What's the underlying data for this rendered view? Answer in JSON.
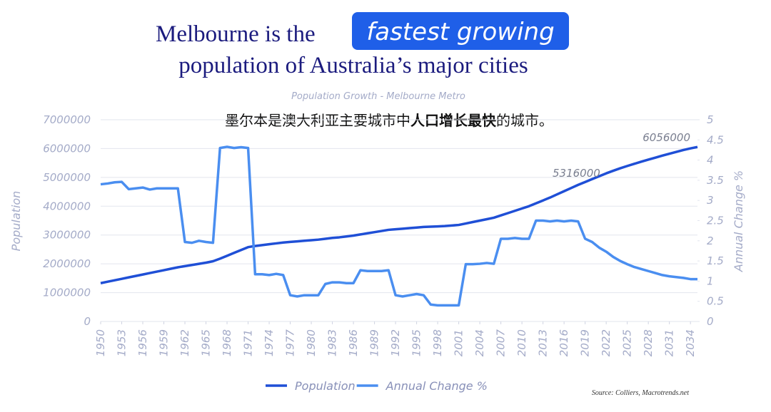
{
  "headline": {
    "line1": "Melbourne is the",
    "highlight": "fastest growing",
    "line2": "population of Australia’s major cities"
  },
  "subtitle_cn": {
    "before": "墨尔本是澳大利亚主要城市中",
    "bold": "人口增长最快",
    "after": "的城市。"
  },
  "source": "Source: Colliers, Macrotrends.net",
  "chart_data": {
    "type": "line",
    "title": "Population Growth - Melbourne Metro",
    "y_label": "Population",
    "y2_label": "Annual Change %",
    "x": [
      1950,
      1951,
      1952,
      1953,
      1954,
      1955,
      1956,
      1957,
      1958,
      1959,
      1960,
      1961,
      1962,
      1963,
      1964,
      1965,
      1966,
      1967,
      1968,
      1969,
      1970,
      1971,
      1972,
      1973,
      1974,
      1975,
      1976,
      1977,
      1978,
      1979,
      1980,
      1981,
      1982,
      1983,
      1984,
      1985,
      1986,
      1987,
      1988,
      1989,
      1990,
      1991,
      1992,
      1993,
      1994,
      1995,
      1996,
      1997,
      1998,
      1999,
      2000,
      2001,
      2002,
      2003,
      2004,
      2005,
      2006,
      2007,
      2008,
      2009,
      2010,
      2011,
      2012,
      2013,
      2014,
      2015,
      2016,
      2017,
      2018,
      2019,
      2020,
      2021,
      2022,
      2023,
      2024,
      2025,
      2026,
      2027,
      2028,
      2029,
      2030,
      2031,
      2032,
      2033,
      2034,
      2035
    ],
    "xlim": [
      1950,
      2035
    ],
    "xticks": [
      1950,
      1953,
      1956,
      1959,
      1962,
      1965,
      1968,
      1971,
      1974,
      1977,
      1980,
      1983,
      1986,
      1989,
      1992,
      1995,
      1998,
      2001,
      2004,
      2007,
      2010,
      2013,
      2016,
      2019,
      2022,
      2025,
      2028,
      2031,
      2034
    ],
    "ylim": [
      0,
      7000000
    ],
    "yticks": [
      0,
      1000000,
      2000000,
      3000000,
      4000000,
      5000000,
      6000000,
      7000000
    ],
    "y2lim": [
      0,
      5
    ],
    "y2ticks": [
      0,
      0.5,
      1,
      1.5,
      2,
      2.5,
      3,
      3.5,
      4,
      4.5,
      5
    ],
    "grid": true,
    "legend": "bottom",
    "series": [
      {
        "name": "Population",
        "color": "#1f4fd6",
        "values": [
          1330000,
          1380000,
          1430000,
          1480000,
          1530000,
          1580000,
          1630000,
          1680000,
          1730000,
          1780000,
          1830000,
          1880000,
          1920000,
          1960000,
          2000000,
          2040000,
          2090000,
          2180000,
          2280000,
          2380000,
          2480000,
          2580000,
          2620000,
          2650000,
          2680000,
          2710000,
          2740000,
          2760000,
          2780000,
          2800000,
          2820000,
          2840000,
          2870000,
          2900000,
          2920000,
          2950000,
          2980000,
          3020000,
          3060000,
          3100000,
          3140000,
          3180000,
          3200000,
          3220000,
          3240000,
          3260000,
          3280000,
          3290000,
          3300000,
          3310000,
          3330000,
          3350000,
          3400000,
          3450000,
          3500000,
          3550000,
          3600000,
          3680000,
          3760000,
          3840000,
          3920000,
          4000000,
          4100000,
          4200000,
          4300000,
          4410000,
          4520000,
          4630000,
          4740000,
          4840000,
          4940000,
          5040000,
          5140000,
          5230000,
          5316000,
          5395000,
          5470000,
          5545000,
          5615000,
          5685000,
          5755000,
          5820000,
          5885000,
          5950000,
          6005000,
          6056000
        ]
      },
      {
        "name": "Annual Change %",
        "color": "#4a8ef0",
        "axis": "y2",
        "values": [
          3.4,
          3.42,
          3.45,
          3.46,
          3.28,
          3.3,
          3.32,
          3.27,
          3.3,
          3.3,
          3.3,
          3.3,
          1.97,
          1.95,
          2.0,
          1.97,
          1.95,
          4.3,
          4.33,
          4.3,
          4.32,
          4.3,
          1.17,
          1.17,
          1.15,
          1.18,
          1.15,
          0.65,
          0.62,
          0.65,
          0.65,
          0.65,
          0.93,
          0.97,
          0.97,
          0.95,
          0.95,
          1.27,
          1.25,
          1.25,
          1.25,
          1.27,
          0.65,
          0.62,
          0.65,
          0.68,
          0.65,
          0.42,
          0.4,
          0.4,
          0.4,
          0.4,
          1.42,
          1.42,
          1.43,
          1.45,
          1.43,
          2.05,
          2.05,
          2.07,
          2.05,
          2.05,
          2.5,
          2.5,
          2.48,
          2.5,
          2.48,
          2.5,
          2.48,
          2.05,
          1.97,
          1.83,
          1.73,
          1.6,
          1.5,
          1.42,
          1.35,
          1.3,
          1.25,
          1.2,
          1.15,
          1.12,
          1.1,
          1.08,
          1.05,
          1.05
        ]
      }
    ]
  }
}
